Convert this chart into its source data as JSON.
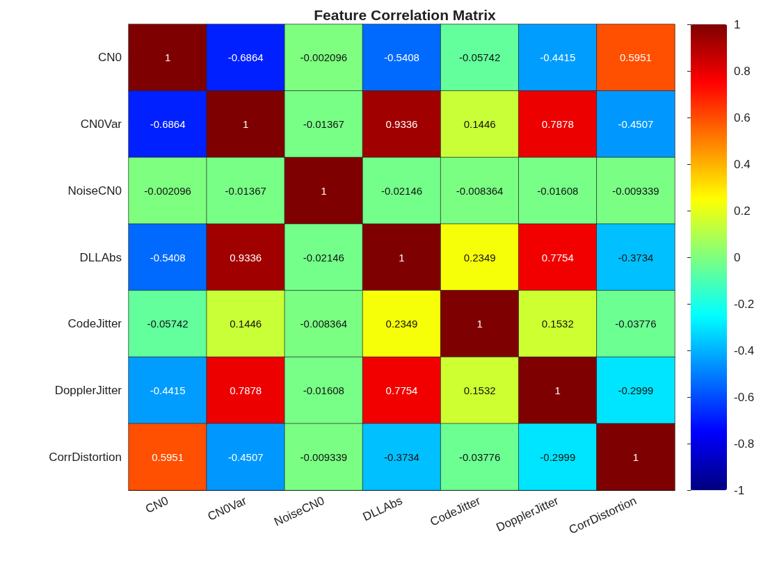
{
  "chart_data": {
    "type": "heatmap",
    "title": "Feature Correlation Matrix",
    "categories": [
      "CN0",
      "CN0Var",
      "NoiseCN0",
      "DLLAbs",
      "CodeJitter",
      "DopplerJitter",
      "CorrDistortion"
    ],
    "y_categories": [
      "CN0",
      "CN0Var",
      "NoiseCN0",
      "DLLAbs",
      "CodeJitter",
      "DopplerJitter",
      "CorrDistortion"
    ],
    "cells": [
      [
        1,
        -0.6864,
        -0.002096,
        -0.5408,
        -0.05742,
        -0.4415,
        0.5951
      ],
      [
        -0.6864,
        1,
        -0.01367,
        0.9336,
        0.1446,
        0.7878,
        -0.4507
      ],
      [
        -0.002096,
        -0.01367,
        1,
        -0.02146,
        -0.008364,
        -0.01608,
        -0.009339
      ],
      [
        -0.5408,
        0.9336,
        -0.02146,
        1,
        0.2349,
        0.7754,
        -0.3734
      ],
      [
        -0.05742,
        0.1446,
        -0.008364,
        0.2349,
        1,
        0.1532,
        -0.03776
      ],
      [
        -0.4415,
        0.7878,
        -0.01608,
        0.7754,
        0.1532,
        1,
        -0.2999
      ],
      [
        0.5951,
        -0.4507,
        -0.009339,
        -0.3734,
        -0.03776,
        -0.2999,
        1
      ]
    ],
    "clim": [
      -1,
      1
    ],
    "cticks": [
      -1,
      -0.8,
      -0.6,
      -0.4,
      -0.2,
      0,
      0.2,
      0.4,
      0.6,
      0.8,
      1
    ],
    "data_labels": true
  }
}
